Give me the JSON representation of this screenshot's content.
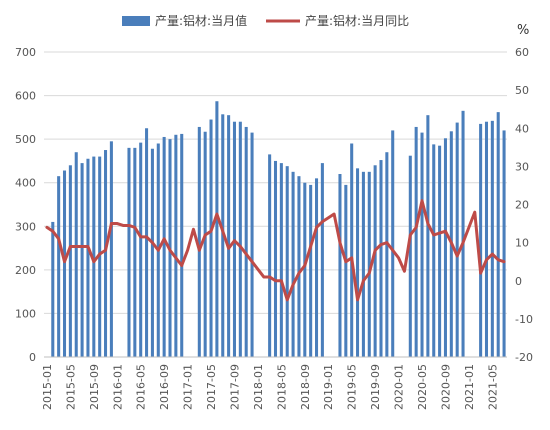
{
  "chart_data": {
    "type": "bar",
    "combo": "bar+line",
    "colors": {
      "bar": "#4A7EBB",
      "line": "#BE4B48",
      "grid": "#D9D9D9",
      "axis": "#BFBFBF",
      "text": "#555555"
    },
    "legend": {
      "placement": "top",
      "bar_label": "产量:铝材:当月值",
      "line_label": "产量:铝材:当月同比"
    },
    "right_axis_unit": "%",
    "y_left": {
      "range": [
        0,
        700
      ],
      "ticks": [
        "0",
        "100",
        "200",
        "300",
        "400",
        "500",
        "600",
        "700"
      ]
    },
    "y_right": {
      "range": [
        -20,
        60
      ],
      "ticks": [
        "-20",
        "-10",
        "0",
        "10",
        "20",
        "30",
        "40",
        "50",
        "60"
      ]
    },
    "x_tick_labels": [
      "2015-01",
      "2015-05",
      "2015-09",
      "2016-01",
      "2016-05",
      "2016-09",
      "2017-01",
      "2017-05",
      "2017-09",
      "2018-01",
      "2018-05",
      "2018-09",
      "2019-01",
      "2019-05",
      "2019-09",
      "2020-01",
      "2020-05",
      "2020-09",
      "2021-01",
      "2021-05"
    ],
    "months": [
      "2015-01",
      "2015-02",
      "2015-03",
      "2015-04",
      "2015-05",
      "2015-06",
      "2015-07",
      "2015-08",
      "2015-09",
      "2015-10",
      "2015-11",
      "2015-12",
      "2016-01",
      "2016-02",
      "2016-03",
      "2016-04",
      "2016-05",
      "2016-06",
      "2016-07",
      "2016-08",
      "2016-09",
      "2016-10",
      "2016-11",
      "2016-12",
      "2017-01",
      "2017-02",
      "2017-03",
      "2017-04",
      "2017-05",
      "2017-06",
      "2017-07",
      "2017-08",
      "2017-09",
      "2017-10",
      "2017-11",
      "2017-12",
      "2018-01",
      "2018-02",
      "2018-03",
      "2018-04",
      "2018-05",
      "2018-06",
      "2018-07",
      "2018-08",
      "2018-09",
      "2018-10",
      "2018-11",
      "2018-12",
      "2019-01",
      "2019-02",
      "2019-03",
      "2019-04",
      "2019-05",
      "2019-06",
      "2019-07",
      "2019-08",
      "2019-09",
      "2019-10",
      "2019-11",
      "2019-12",
      "2020-01",
      "2020-02",
      "2020-03",
      "2020-04",
      "2020-05",
      "2020-06",
      "2020-07",
      "2020-08",
      "2020-09",
      "2020-10",
      "2020-11",
      "2020-12",
      "2021-01",
      "2021-02",
      "2021-03",
      "2021-04",
      "2021-05",
      "2021-06",
      "2021-07"
    ],
    "series": [
      {
        "name": "产量:铝材:当月值",
        "kind": "bar",
        "axis": "left",
        "values": [
          null,
          310,
          415,
          428,
          440,
          470,
          445,
          455,
          460,
          460,
          475,
          495,
          null,
          null,
          480,
          480,
          492,
          525,
          478,
          490,
          505,
          500,
          510,
          512,
          null,
          null,
          528,
          517,
          545,
          587,
          557,
          555,
          540,
          540,
          528,
          515,
          null,
          null,
          465,
          450,
          445,
          438,
          425,
          415,
          400,
          395,
          410,
          445,
          null,
          null,
          420,
          395,
          490,
          433,
          425,
          425,
          440,
          452,
          470,
          520,
          null,
          null,
          462,
          528,
          515,
          555,
          488,
          485,
          502,
          518,
          538,
          565,
          null,
          null,
          535,
          540,
          542,
          562,
          520
        ]
      },
      {
        "name": "产量:铝材:当月同比",
        "kind": "line",
        "axis": "right",
        "values": [
          14,
          13,
          11,
          5,
          9,
          9,
          9,
          9,
          5,
          7,
          8,
          15,
          15,
          14.5,
          14.5,
          14,
          11.5,
          11.5,
          10,
          8,
          11,
          8,
          6,
          4,
          8,
          13.5,
          8,
          12,
          13,
          17.5,
          13,
          8.5,
          10.5,
          9,
          7,
          5,
          3,
          1,
          1,
          0,
          0,
          -5,
          -1,
          2,
          4,
          9,
          14,
          15.5,
          16.5,
          17.5,
          10,
          5,
          6,
          -5,
          0,
          2,
          8,
          9.5,
          10,
          8,
          6,
          2.5,
          12,
          14,
          21,
          15,
          12,
          12.5,
          13,
          10,
          6.5,
          10,
          14,
          18,
          2,
          5.5,
          7,
          5.5,
          5
        ]
      }
    ]
  }
}
